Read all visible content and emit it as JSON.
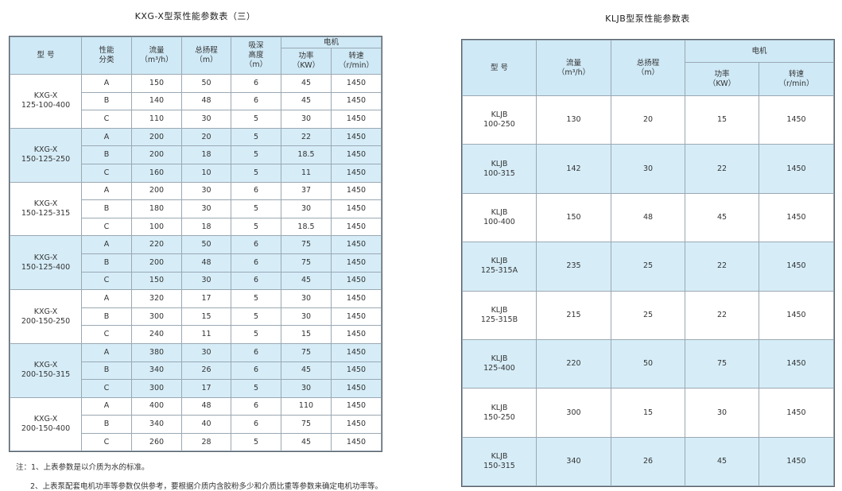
{
  "left": {
    "title": "KXG-X型泵性能参数表（三）",
    "headers": {
      "model": "型 号",
      "class": "性能\n分类",
      "flow": "流量\n（m³/h）",
      "head": "总扬程\n（m）",
      "suction": "吸深\n高度\n（m）",
      "motor": "电机",
      "power": "功率\n（KW）",
      "speed": "转速\n（r/min）"
    },
    "groups": [
      {
        "model": "KXG-X\n125-100-400",
        "rows": [
          [
            "A",
            "150",
            "50",
            "6",
            "45",
            "1450"
          ],
          [
            "B",
            "140",
            "48",
            "6",
            "45",
            "1450"
          ],
          [
            "C",
            "110",
            "30",
            "5",
            "30",
            "1450"
          ]
        ]
      },
      {
        "model": "KXG-X\n150-125-250",
        "rows": [
          [
            "A",
            "200",
            "20",
            "5",
            "22",
            "1450"
          ],
          [
            "B",
            "200",
            "18",
            "5",
            "18.5",
            "1450"
          ],
          [
            "C",
            "160",
            "10",
            "5",
            "11",
            "1450"
          ]
        ]
      },
      {
        "model": "KXG-X\n150-125-315",
        "rows": [
          [
            "A",
            "200",
            "30",
            "6",
            "37",
            "1450"
          ],
          [
            "B",
            "180",
            "30",
            "5",
            "30",
            "1450"
          ],
          [
            "C",
            "100",
            "18",
            "5",
            "18.5",
            "1450"
          ]
        ]
      },
      {
        "model": "KXG-X\n150-125-400",
        "rows": [
          [
            "A",
            "220",
            "50",
            "6",
            "75",
            "1450"
          ],
          [
            "B",
            "200",
            "48",
            "6",
            "75",
            "1450"
          ],
          [
            "C",
            "150",
            "30",
            "6",
            "45",
            "1450"
          ]
        ]
      },
      {
        "model": "KXG-X\n200-150-250",
        "rows": [
          [
            "A",
            "320",
            "17",
            "5",
            "30",
            "1450"
          ],
          [
            "B",
            "300",
            "15",
            "5",
            "30",
            "1450"
          ],
          [
            "C",
            "240",
            "11",
            "5",
            "15",
            "1450"
          ]
        ]
      },
      {
        "model": "KXG-X\n200-150-315",
        "rows": [
          [
            "A",
            "380",
            "30",
            "6",
            "75",
            "1450"
          ],
          [
            "B",
            "340",
            "26",
            "6",
            "45",
            "1450"
          ],
          [
            "C",
            "300",
            "17",
            "5",
            "30",
            "1450"
          ]
        ]
      },
      {
        "model": "KXG-X\n200-150-400",
        "rows": [
          [
            "A",
            "400",
            "48",
            "6",
            "110",
            "1450"
          ],
          [
            "B",
            "340",
            "40",
            "6",
            "75",
            "1450"
          ],
          [
            "C",
            "260",
            "28",
            "5",
            "45",
            "1450"
          ]
        ]
      }
    ],
    "notes": [
      "注：1、上表参数是以介质为水的标准。",
      "2、上表泵配套电机功率等参数仅供参考，要根据介质内含胶粉多少和介质比重等参数来确定电机功率等。"
    ]
  },
  "right": {
    "title": "KLJB型泵性能参数表",
    "headers": {
      "model": "型 号",
      "flow": "流量\n（m³/h）",
      "head": "总扬程\n（m）",
      "motor": "电机",
      "power": "功率\n（KW）",
      "speed": "转速\n（r/min）"
    },
    "rows": [
      [
        "KLJB\n100-250",
        "130",
        "20",
        "15",
        "1450"
      ],
      [
        "KLJB\n100-315",
        "142",
        "30",
        "22",
        "1450"
      ],
      [
        "KLJB\n100-400",
        "150",
        "48",
        "45",
        "1450"
      ],
      [
        "KLJB\n125-315A",
        "235",
        "25",
        "22",
        "1450"
      ],
      [
        "KLJB\n125-315B",
        "215",
        "25",
        "22",
        "1450"
      ],
      [
        "KLJB\n125-400",
        "220",
        "50",
        "75",
        "1450"
      ],
      [
        "KLJB\n150-250",
        "300",
        "15",
        "30",
        "1450"
      ],
      [
        "KLJB\n150-315",
        "340",
        "26",
        "45",
        "1450"
      ]
    ]
  },
  "colors": {
    "header_bg": "#cfe9f6",
    "alt_row_bg": "#d6edf8",
    "border": "#9aa8b2"
  }
}
